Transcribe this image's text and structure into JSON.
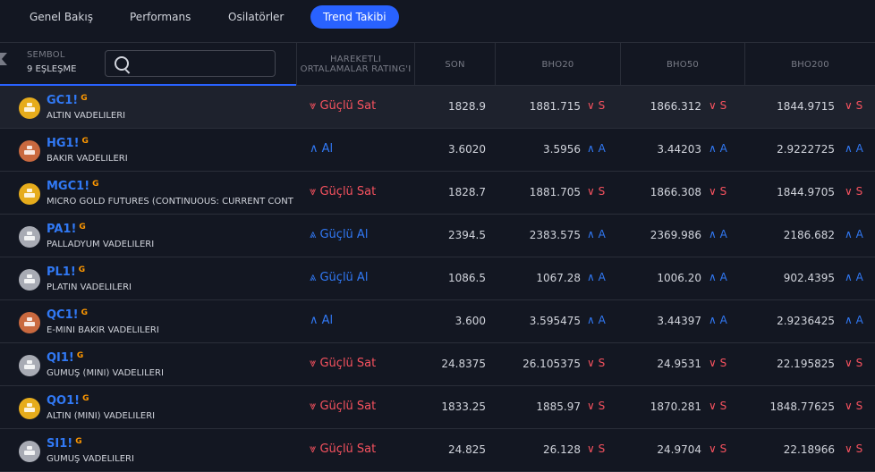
{
  "tabs": [
    {
      "label": "Genel Bakış",
      "active": false
    },
    {
      "label": "Performans",
      "active": false
    },
    {
      "label": "Osilatörler",
      "active": false
    },
    {
      "label": "Trend Takibi",
      "active": true
    }
  ],
  "header": {
    "symbol_label": "SEMBOL",
    "match_count": "9 EŞLEŞME",
    "search": {
      "value": "",
      "placeholder": ""
    },
    "columns": [
      "HAREKETLI ORTALAMALAR RATING'I",
      "SON",
      "BHO20",
      "BHO50",
      "BHO200"
    ]
  },
  "colors": {
    "sell": "#f7525f",
    "buy": "#3179f5",
    "gold": "#e6ac1c",
    "copper": "#c9693f",
    "silver": "#a8abb4",
    "accent": "#2962ff"
  },
  "rows": [
    {
      "ticker": "GC1!",
      "badge": "G",
      "desc": "ALTIN VADELILERI",
      "logo": "gold",
      "rating": "Güçlü Sat",
      "rating_type": "sell",
      "last": "1828.9",
      "bho20": "1881.715",
      "bho20_sig": "S",
      "bho50": "1866.312",
      "bho50_sig": "S",
      "bho200": "1844.9715",
      "bho200_sig": "S"
    },
    {
      "ticker": "HG1!",
      "badge": "G",
      "desc": "BAKIR VADELILERI",
      "logo": "copper",
      "rating": "Al",
      "rating_type": "buy",
      "last": "3.6020",
      "bho20": "3.5956",
      "bho20_sig": "A",
      "bho50": "3.44203",
      "bho50_sig": "A",
      "bho200": "2.9222725",
      "bho200_sig": "A"
    },
    {
      "ticker": "MGC1!",
      "badge": "G",
      "desc": "MICRO GOLD FUTURES (CONTINUOUS: CURRENT CONT",
      "logo": "gold",
      "rating": "Güçlü Sat",
      "rating_type": "sell",
      "last": "1828.7",
      "bho20": "1881.705",
      "bho20_sig": "S",
      "bho50": "1866.308",
      "bho50_sig": "S",
      "bho200": "1844.9705",
      "bho200_sig": "S"
    },
    {
      "ticker": "PA1!",
      "badge": "G",
      "desc": "PALLADYUM VADELILERI",
      "logo": "silver",
      "rating": "Güçlü Al",
      "rating_type": "strongbuy",
      "last": "2394.5",
      "bho20": "2383.575",
      "bho20_sig": "A",
      "bho50": "2369.986",
      "bho50_sig": "A",
      "bho200": "2186.682",
      "bho200_sig": "A"
    },
    {
      "ticker": "PL1!",
      "badge": "G",
      "desc": "PLATIN VADELILERI",
      "logo": "silver",
      "rating": "Güçlü Al",
      "rating_type": "strongbuy",
      "last": "1086.5",
      "bho20": "1067.28",
      "bho20_sig": "A",
      "bho50": "1006.20",
      "bho50_sig": "A",
      "bho200": "902.4395",
      "bho200_sig": "A"
    },
    {
      "ticker": "QC1!",
      "badge": "G",
      "desc": "E-MINI BAKIR VADELILERI",
      "logo": "copper",
      "rating": "Al",
      "rating_type": "buy",
      "last": "3.600",
      "bho20": "3.595475",
      "bho20_sig": "A",
      "bho50": "3.44397",
      "bho50_sig": "A",
      "bho200": "2.9236425",
      "bho200_sig": "A"
    },
    {
      "ticker": "QI1!",
      "badge": "G",
      "desc": "GÜMÜŞ (MINI) VADELILERI",
      "logo": "silver",
      "rating": "Güçlü Sat",
      "rating_type": "sell",
      "last": "24.8375",
      "bho20": "26.105375",
      "bho20_sig": "S",
      "bho50": "24.9531",
      "bho50_sig": "S",
      "bho200": "22.195825",
      "bho200_sig": "S"
    },
    {
      "ticker": "QO1!",
      "badge": "G",
      "desc": "ALTIN (MINI) VADELILERI",
      "logo": "gold",
      "rating": "Güçlü Sat",
      "rating_type": "sell",
      "last": "1833.25",
      "bho20": "1885.97",
      "bho20_sig": "S",
      "bho50": "1870.281",
      "bho50_sig": "S",
      "bho200": "1848.77625",
      "bho200_sig": "S"
    },
    {
      "ticker": "SI1!",
      "badge": "G",
      "desc": "GÜMÜŞ VADELILERI",
      "logo": "silver",
      "rating": "Güçlü Sat",
      "rating_type": "sell",
      "last": "24.825",
      "bho20": "26.128",
      "bho20_sig": "S",
      "bho50": "24.9704",
      "bho50_sig": "S",
      "bho200": "22.18966",
      "bho200_sig": "S"
    }
  ]
}
